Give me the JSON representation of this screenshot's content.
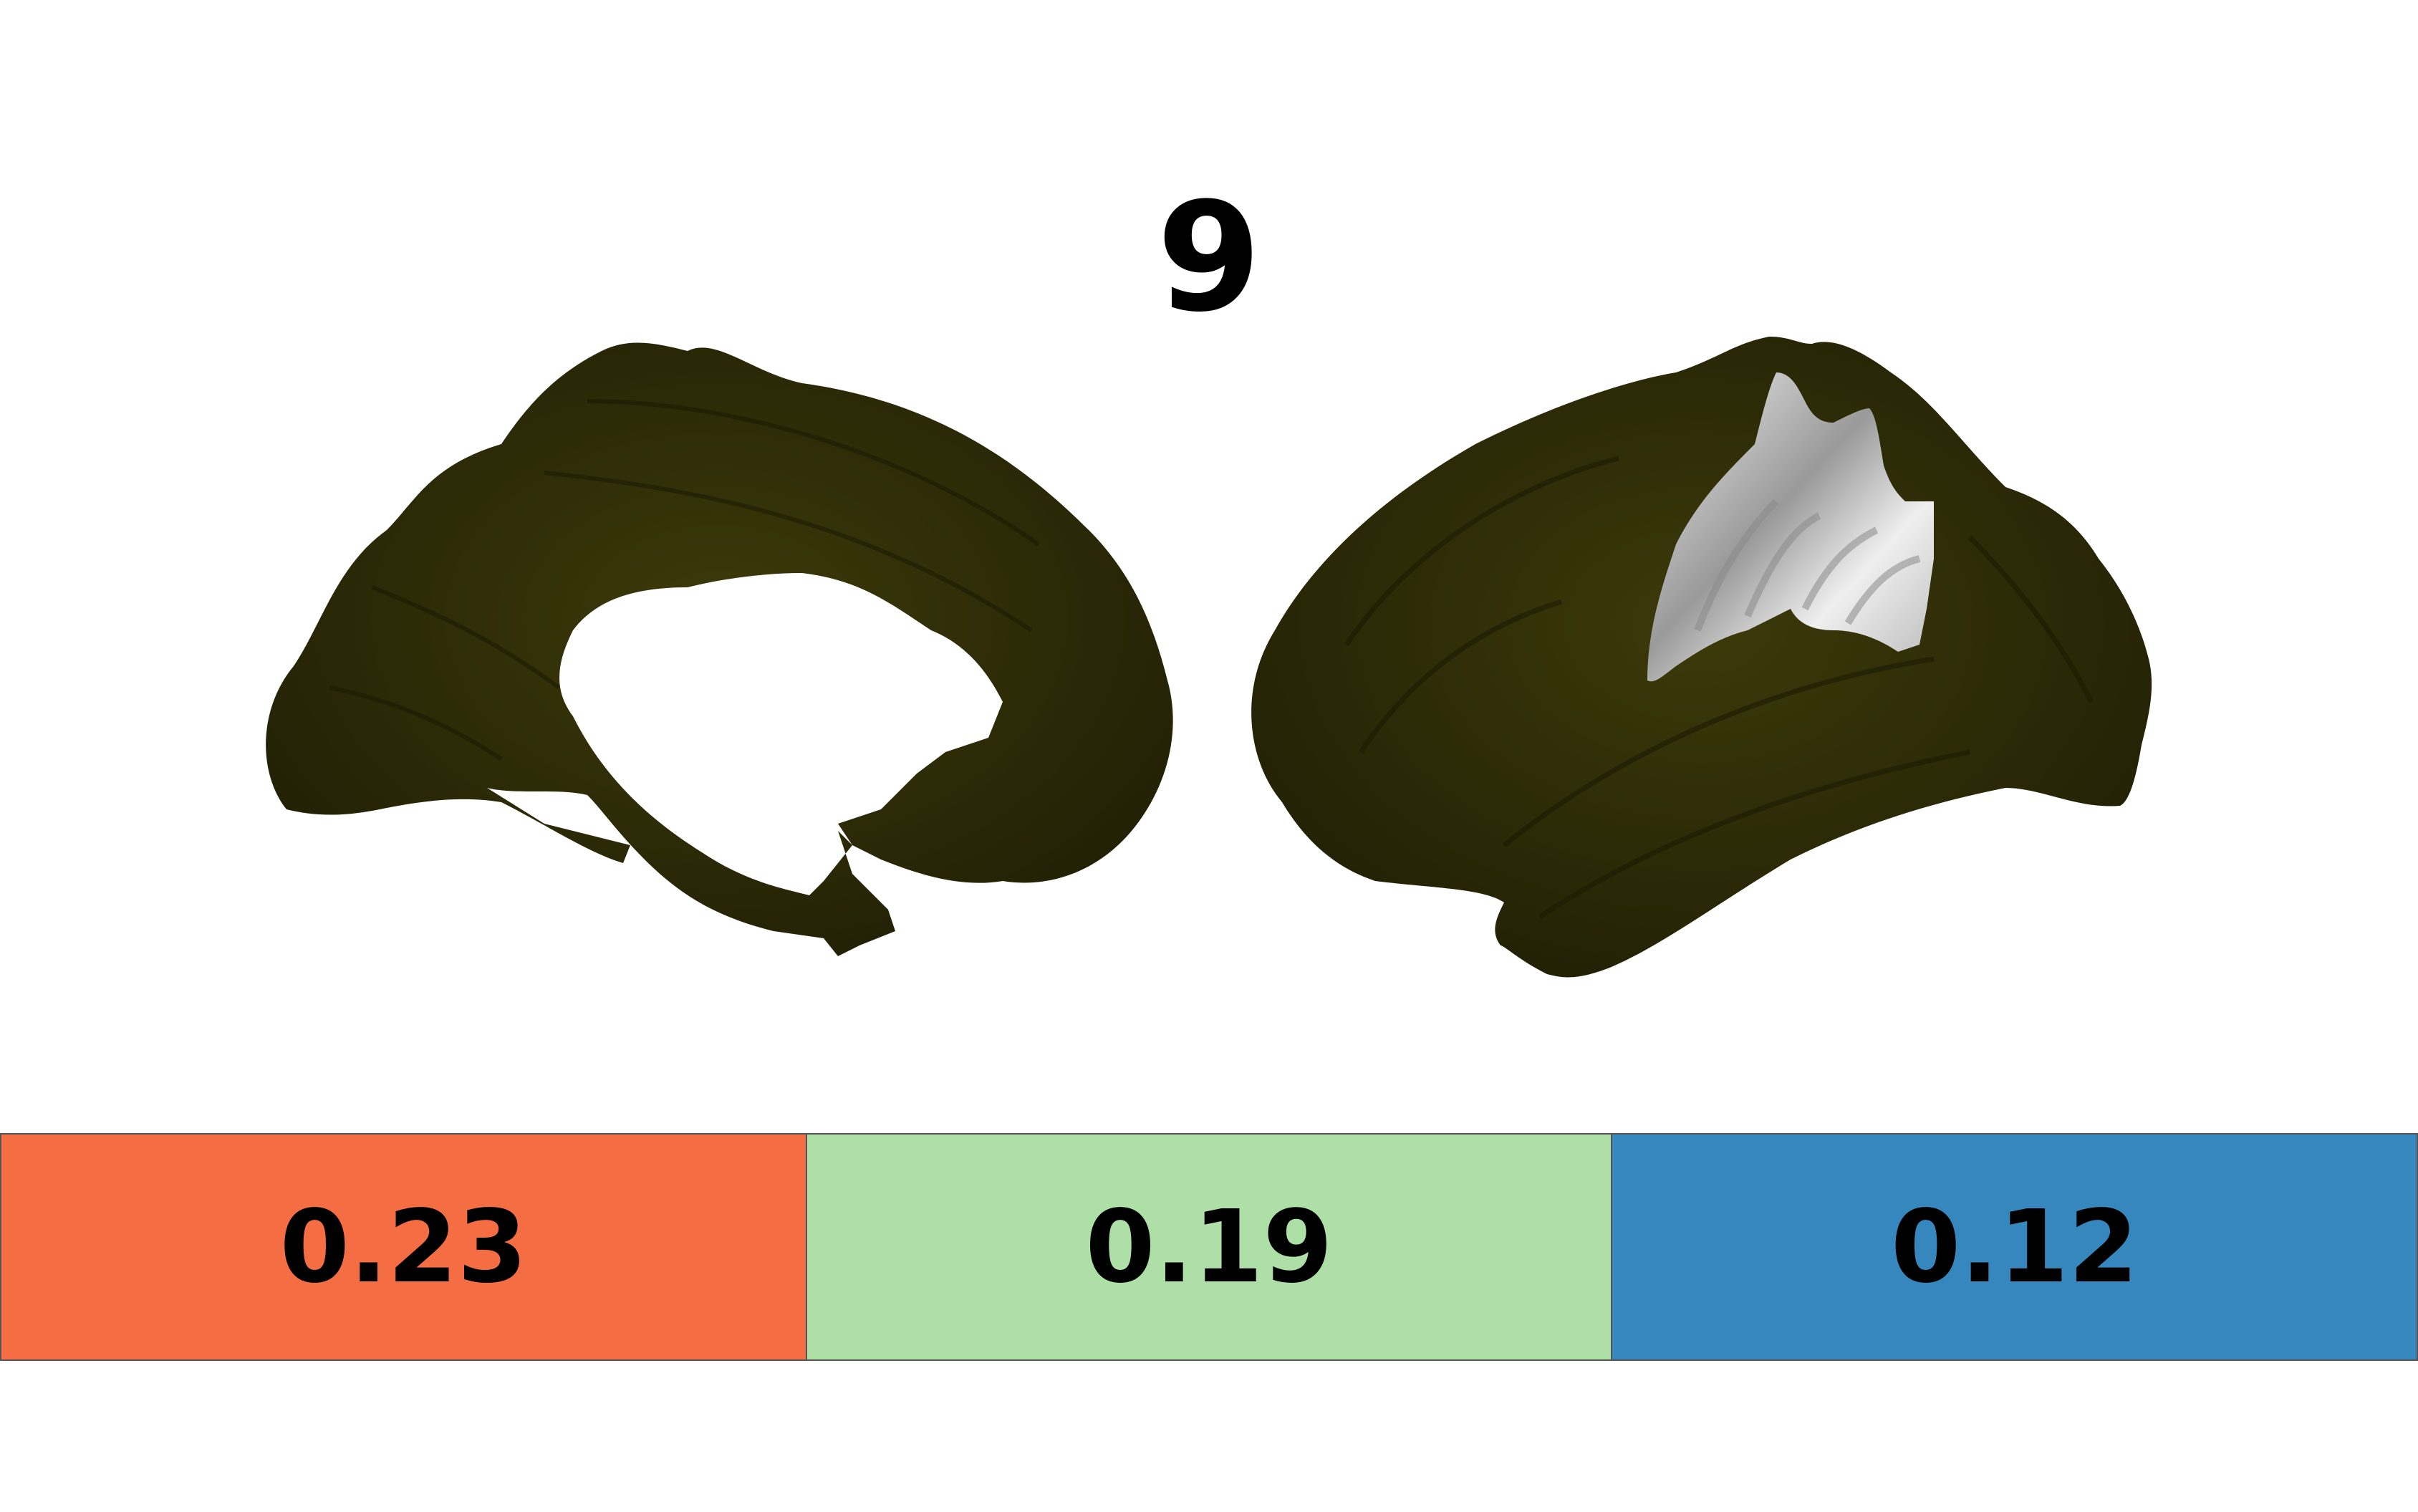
{
  "title": "9",
  "colors": {
    "cortex": "#2e2c05",
    "cortex_highlight": "#3d3a0a",
    "region": "#e2e2e2",
    "background": "#ffffff"
  },
  "views": [
    {
      "name": "medial",
      "highlighted_region": false
    },
    {
      "name": "lateral",
      "highlighted_region": true
    }
  ],
  "bar": {
    "segments": [
      {
        "label": "0.23",
        "color": "#f46d43"
      },
      {
        "label": "0.19",
        "color": "#addfa7"
      },
      {
        "label": "0.12",
        "color": "#3587bd"
      }
    ]
  }
}
